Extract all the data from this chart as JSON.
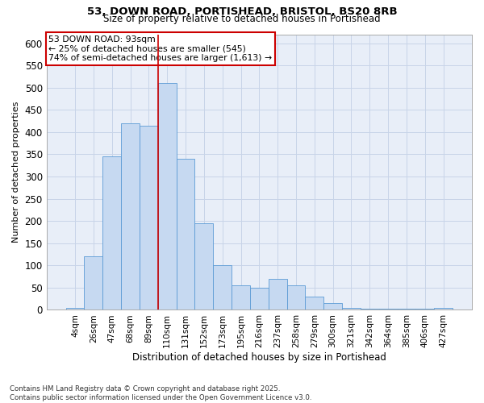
{
  "title_line1": "53, DOWN ROAD, PORTISHEAD, BRISTOL, BS20 8RB",
  "title_line2": "Size of property relative to detached houses in Portishead",
  "xlabel": "Distribution of detached houses by size in Portishead",
  "ylabel": "Number of detached properties",
  "footer_line1": "Contains HM Land Registry data © Crown copyright and database right 2025.",
  "footer_line2": "Contains public sector information licensed under the Open Government Licence v3.0.",
  "annotation_line1": "53 DOWN ROAD: 93sqm",
  "annotation_line2": "← 25% of detached houses are smaller (545)",
  "annotation_line3": "74% of semi-detached houses are larger (1,613) →",
  "bin_labels": [
    "4sqm",
    "26sqm",
    "47sqm",
    "68sqm",
    "89sqm",
    "110sqm",
    "131sqm",
    "152sqm",
    "173sqm",
    "195sqm",
    "216sqm",
    "237sqm",
    "258sqm",
    "279sqm",
    "300sqm",
    "321sqm",
    "342sqm",
    "364sqm",
    "385sqm",
    "406sqm",
    "427sqm"
  ],
  "bar_heights": [
    5,
    120,
    345,
    420,
    415,
    510,
    340,
    195,
    100,
    55,
    50,
    70,
    55,
    30,
    15,
    5,
    2,
    2,
    2,
    2,
    5
  ],
  "bar_color": "#c6d9f1",
  "bar_edge_color": "#5b9bd5",
  "grid_color": "#c8d4e8",
  "background_color": "#e8eef8",
  "vline_x_index": 4.5,
  "vline_color": "#cc0000",
  "annotation_box_color": "#cc0000",
  "ylim": [
    0,
    620
  ],
  "yticks": [
    0,
    50,
    100,
    150,
    200,
    250,
    300,
    350,
    400,
    450,
    500,
    550,
    600
  ]
}
